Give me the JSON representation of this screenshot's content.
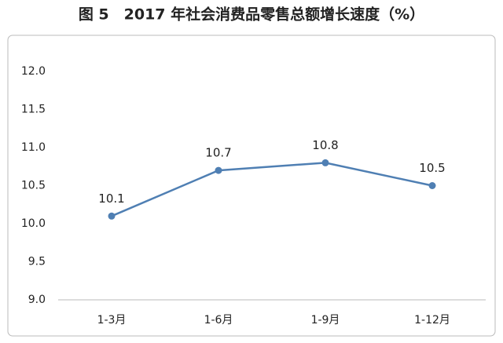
{
  "chart_data": {
    "type": "line",
    "title": "图 5　2017 年社会消费品零售总额增长速度（%）",
    "categories": [
      "1-3月",
      "1-6月",
      "1-9月",
      "1-12月"
    ],
    "series": [
      {
        "name": "增长速度",
        "color": "#4f7fb3",
        "values": [
          10.1,
          10.7,
          10.8,
          10.5
        ]
      }
    ],
    "ylim": [
      9.0,
      12.0
    ],
    "yticks": [
      {
        "value": 9,
        "label": "9.0"
      },
      9.5,
      {
        "value": 10,
        "label": "10.0"
      },
      10.5,
      {
        "value": 11,
        "label": "11.0"
      },
      11.5,
      {
        "value": 12,
        "label": "12.0"
      }
    ],
    "grid": false
  }
}
